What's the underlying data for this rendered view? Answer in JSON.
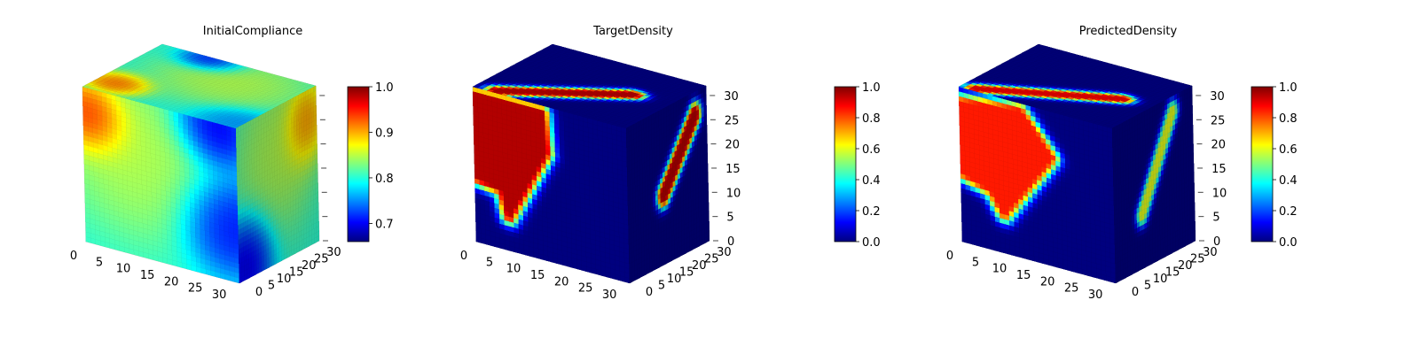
{
  "figure": {
    "colors": {
      "jet": [
        "#00007f",
        "#0000ff",
        "#007fff",
        "#00ffff",
        "#7fff7f",
        "#ffff00",
        "#ff7f00",
        "#ff0000",
        "#7f0000"
      ],
      "pane": "#f2f2f2",
      "edge": "#cccccc"
    }
  },
  "chart_data": [
    {
      "type": "voxel3d",
      "title": "InitialCompliance",
      "axes": {
        "x": {
          "ticks": [
            0,
            5,
            10,
            15,
            20,
            25,
            30
          ],
          "range": [
            0,
            32
          ]
        },
        "y": {
          "ticks": [
            0,
            5,
            10,
            15,
            20,
            25,
            30
          ],
          "range": [
            0,
            32
          ]
        },
        "z": {
          "ticks": [],
          "range": [
            0,
            32
          ]
        },
        "grid": true
      },
      "colorbar": {
        "colormap": "jet",
        "range": [
          0.66,
          1.0
        ],
        "ticks": [
          "0.7",
          "0.8",
          "0.9",
          "1.0"
        ],
        "tick_values": [
          0.7,
          0.8,
          0.9,
          1.0
        ]
      },
      "field": {
        "base": 0.8,
        "features": [
          {
            "face": "front",
            "u": 0.05,
            "v": 0.18,
            "r": 0.18,
            "value": 1.0
          },
          {
            "face": "front",
            "u": 0.35,
            "v": 0.35,
            "r": 0.4,
            "value": 0.86
          },
          {
            "face": "front",
            "u": 0.95,
            "v": 0.65,
            "r": 0.25,
            "value": 0.68
          },
          {
            "face": "front",
            "u": 0.85,
            "v": 0.05,
            "r": 0.2,
            "value": 0.66
          },
          {
            "face": "top",
            "u": 0.12,
            "v": 0.2,
            "r": 0.15,
            "value": 0.95
          },
          {
            "face": "top",
            "u": 0.6,
            "v": 0.7,
            "r": 0.35,
            "value": 0.86
          },
          {
            "face": "top",
            "u": 0.35,
            "v": 0.95,
            "r": 0.15,
            "value": 0.66
          },
          {
            "face": "top",
            "u": 0.95,
            "v": 0.1,
            "r": 0.2,
            "value": 0.74
          },
          {
            "face": "side",
            "u": 0.5,
            "v": 0.7,
            "r": 0.4,
            "value": 0.86
          },
          {
            "face": "side",
            "u": 0.1,
            "v": 0.1,
            "r": 0.25,
            "value": 0.66
          },
          {
            "face": "side",
            "u": 0.85,
            "v": 0.8,
            "r": 0.2,
            "value": 0.95
          }
        ]
      }
    },
    {
      "type": "voxel3d",
      "title": "TargetDensity",
      "axes": {
        "x": {
          "ticks": [
            0,
            5,
            10,
            15,
            20,
            25,
            30
          ],
          "range": [
            0,
            32
          ]
        },
        "y": {
          "ticks": [
            0,
            5,
            10,
            15,
            20,
            25,
            30
          ],
          "range": [
            0,
            32
          ]
        },
        "z": {
          "ticks": [
            0,
            5,
            10,
            15,
            20,
            25,
            30
          ],
          "range": [
            0,
            32
          ]
        },
        "grid": true
      },
      "colorbar": {
        "colormap": "jet",
        "range": [
          0.0,
          1.0
        ],
        "ticks": [
          "0.0",
          "0.2",
          "0.4",
          "0.6",
          "0.8",
          "1.0"
        ],
        "tick_values": [
          0.0,
          0.2,
          0.4,
          0.6,
          0.8,
          1.0
        ]
      },
      "field": {
        "base": 0.0,
        "features": [
          {
            "face": "front",
            "kind": "triangle",
            "points": [
              [
                0.0,
                0.05
              ],
              [
                0.0,
                0.58
              ],
              [
                0.18,
                0.62
              ],
              [
                0.22,
                0.78
              ],
              [
                0.47,
                0.3
              ],
              [
                0.45,
                0.05
              ]
            ],
            "value": 0.95
          },
          {
            "face": "top",
            "kind": "segment",
            "a": [
              0.15,
              0.05
            ],
            "b": [
              0.75,
              0.55
            ],
            "r": 0.08,
            "value": 0.95
          },
          {
            "face": "side",
            "kind": "segment",
            "a": [
              0.45,
              0.45
            ],
            "b": [
              0.85,
              0.85
            ],
            "r": 0.08,
            "value": 0.95
          }
        ]
      }
    },
    {
      "type": "voxel3d",
      "title": "PredictedDensity",
      "axes": {
        "x": {
          "ticks": [
            0,
            5,
            10,
            15,
            20,
            25,
            30
          ],
          "range": [
            0,
            32
          ]
        },
        "y": {
          "ticks": [
            0,
            5,
            10,
            15,
            20,
            25,
            30
          ],
          "range": [
            0,
            32
          ]
        },
        "z": {
          "ticks": [
            0,
            5,
            10,
            15,
            20,
            25,
            30
          ],
          "range": [
            0,
            32
          ]
        },
        "grid": true
      },
      "colorbar": {
        "colormap": "jet",
        "range": [
          0.0,
          1.0
        ],
        "ticks": [
          "0.0",
          "0.2",
          "0.4",
          "0.6",
          "0.8",
          "1.0"
        ],
        "tick_values": [
          0.0,
          0.2,
          0.4,
          0.6,
          0.8,
          1.0
        ]
      },
      "field": {
        "base": 0.0,
        "features": [
          {
            "face": "front",
            "kind": "triangle",
            "points": [
              [
                0.0,
                0.1
              ],
              [
                0.0,
                0.55
              ],
              [
                0.2,
                0.62
              ],
              [
                0.28,
                0.75
              ],
              [
                0.6,
                0.3
              ],
              [
                0.4,
                0.05
              ]
            ],
            "value": 0.85
          },
          {
            "face": "top",
            "kind": "segment",
            "a": [
              0.1,
              0.05
            ],
            "b": [
              0.8,
              0.5
            ],
            "r": 0.07,
            "value": 0.9
          },
          {
            "face": "side",
            "kind": "segment",
            "a": [
              0.35,
              0.35
            ],
            "b": [
              0.75,
              0.9
            ],
            "r": 0.05,
            "value": 0.6
          }
        ]
      }
    }
  ]
}
